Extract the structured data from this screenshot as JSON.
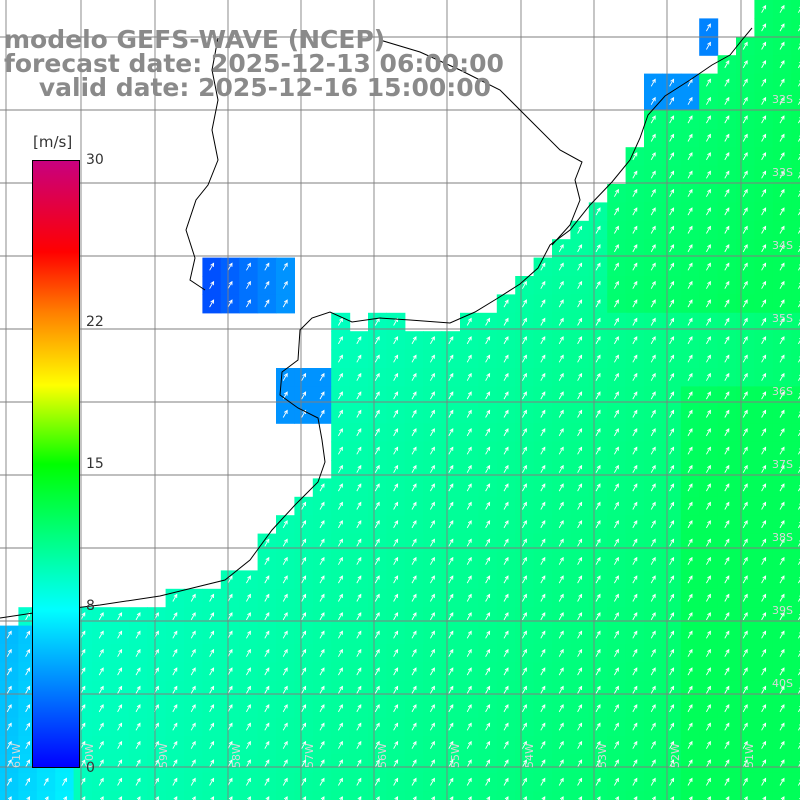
{
  "title": {
    "line1": "modelo GEFS-WAVE (NCEP)",
    "line2": "forecast date: 2025-12-13 06:00:00",
    "line3": "    valid date: 2025-12-16 15:00:00"
  },
  "colorbar": {
    "unit": "[m/s]",
    "ticks": [
      "30",
      "22",
      "15",
      "8",
      "0"
    ],
    "tick_values": [
      30,
      22,
      15,
      8,
      0
    ],
    "min": 0,
    "max": 30,
    "colors": [
      "#0000ff",
      "#00ffff",
      "#00ff00",
      "#ffff00",
      "#ff7f00",
      "#ff0000",
      "#c8007f"
    ]
  },
  "map": {
    "land_color": "#ffffff",
    "coast_color": "#000000",
    "grid_color": "#7f7f7f",
    "arrow_color": "#ffffff",
    "lat_labels": [
      "32S",
      "33S",
      "34S",
      "35S",
      "36S",
      "37S",
      "38S",
      "39S",
      "40S"
    ],
    "lon_labels": [
      "61W",
      "60W",
      "59W",
      "58W",
      "57W",
      "56W",
      "55W",
      "54W",
      "53W",
      "52W",
      "51W"
    ]
  }
}
